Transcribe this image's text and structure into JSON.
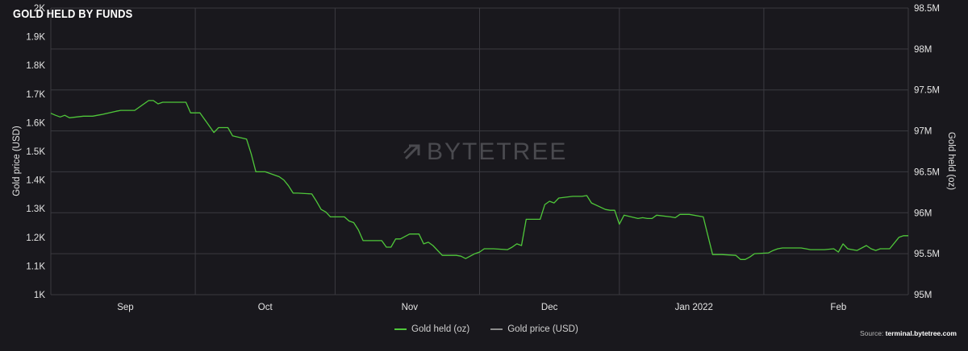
{
  "title": "GOLD HELD BY FUNDS",
  "watermark": "BYTETREE",
  "source": {
    "label": "Source:",
    "value": "terminal.bytetree.com"
  },
  "colors": {
    "background": "#19181d",
    "grid": "#3b3a40",
    "gold_held": "#4fc73a",
    "gold_price": "#8c8c8c",
    "text": "#e4e4e4"
  },
  "chart_data": {
    "type": "line",
    "title": "GOLD HELD BY FUNDS",
    "x_ticks": [
      "Sep",
      "Oct",
      "Nov",
      "Dec",
      "Jan 2022",
      "Feb"
    ],
    "x_range": [
      "2021-08-16",
      "2022-02-16"
    ],
    "y_left": {
      "label": "Gold price (USD)",
      "ticks": [
        "1K",
        "1.1K",
        "1.2K",
        "1.3K",
        "1.4K",
        "1.5K",
        "1.6K",
        "1.7K",
        "1.8K",
        "1.9K",
        "2K"
      ],
      "range": [
        1000,
        2000
      ]
    },
    "y_right": {
      "label": "Gold held (oz)",
      "ticks": [
        "95M",
        "95.5M",
        "96M",
        "96.5M",
        "97M",
        "97.5M",
        "98M",
        "98.5M"
      ],
      "range": [
        95000000,
        98500000
      ]
    },
    "grid": true,
    "legend_position": "bottom-center",
    "series": [
      {
        "name": "Gold held (oz)",
        "axis": "right",
        "points": [
          [
            "2021-08-16",
            97.215
          ],
          [
            "2021-08-17",
            97.19
          ],
          [
            "2021-08-18",
            97.17
          ],
          [
            "2021-08-19",
            97.19
          ],
          [
            "2021-08-20",
            97.16
          ],
          [
            "2021-08-23",
            97.18
          ],
          [
            "2021-08-24",
            97.18
          ],
          [
            "2021-08-25",
            97.18
          ],
          [
            "2021-08-26",
            97.19
          ],
          [
            "2021-08-27",
            97.2
          ],
          [
            "2021-08-30",
            97.24
          ],
          [
            "2021-08-31",
            97.25
          ],
          [
            "2021-09-01",
            97.25
          ],
          [
            "2021-09-02",
            97.25
          ],
          [
            "2021-09-03",
            97.25
          ],
          [
            "2021-09-06",
            97.37
          ],
          [
            "2021-09-07",
            97.37
          ],
          [
            "2021-09-08",
            97.33
          ],
          [
            "2021-09-09",
            97.35
          ],
          [
            "2021-09-10",
            97.35
          ],
          [
            "2021-09-13",
            97.35
          ],
          [
            "2021-09-14",
            97.35
          ],
          [
            "2021-09-15",
            97.22
          ],
          [
            "2021-09-16",
            97.22
          ],
          [
            "2021-09-17",
            97.22
          ],
          [
            "2021-09-20",
            96.98
          ],
          [
            "2021-09-21",
            97.04
          ],
          [
            "2021-09-22",
            97.04
          ],
          [
            "2021-09-23",
            97.04
          ],
          [
            "2021-09-24",
            96.94
          ],
          [
            "2021-09-27",
            96.9
          ],
          [
            "2021-09-28",
            96.72
          ],
          [
            "2021-09-29",
            96.5
          ],
          [
            "2021-09-30",
            96.5
          ],
          [
            "2021-10-01",
            96.5
          ],
          [
            "2021-10-04",
            96.44
          ],
          [
            "2021-10-05",
            96.4
          ],
          [
            "2021-10-06",
            96.33
          ],
          [
            "2021-10-07",
            96.24
          ],
          [
            "2021-10-08",
            96.24
          ],
          [
            "2021-10-11",
            96.23
          ],
          [
            "2021-10-12",
            96.14
          ],
          [
            "2021-10-13",
            96.04
          ],
          [
            "2021-10-14",
            96.01
          ],
          [
            "2021-10-15",
            95.95
          ],
          [
            "2021-10-18",
            95.95
          ],
          [
            "2021-10-19",
            95.9
          ],
          [
            "2021-10-20",
            95.88
          ],
          [
            "2021-10-21",
            95.79
          ],
          [
            "2021-10-22",
            95.66
          ],
          [
            "2021-10-25",
            95.66
          ],
          [
            "2021-10-26",
            95.66
          ],
          [
            "2021-10-27",
            95.58
          ],
          [
            "2021-10-28",
            95.58
          ],
          [
            "2021-10-29",
            95.68
          ],
          [
            "2021-10-30",
            95.68
          ],
          [
            "2021-11-01",
            95.74
          ],
          [
            "2021-11-02",
            95.74
          ],
          [
            "2021-11-03",
            95.74
          ],
          [
            "2021-11-04",
            95.62
          ],
          [
            "2021-11-05",
            95.64
          ],
          [
            "2021-11-06",
            95.6
          ],
          [
            "2021-11-08",
            95.48
          ],
          [
            "2021-11-09",
            95.48
          ],
          [
            "2021-11-10",
            95.48
          ],
          [
            "2021-11-11",
            95.48
          ],
          [
            "2021-11-12",
            95.47
          ],
          [
            "2021-11-13",
            95.44
          ],
          [
            "2021-11-15",
            95.5
          ],
          [
            "2021-11-16",
            95.52
          ],
          [
            "2021-11-17",
            95.56
          ],
          [
            "2021-11-18",
            95.56
          ],
          [
            "2021-11-19",
            95.56
          ],
          [
            "2021-11-22",
            95.55
          ],
          [
            "2021-11-23",
            95.58
          ],
          [
            "2021-11-24",
            95.62
          ],
          [
            "2021-11-25",
            95.6
          ],
          [
            "2021-11-26",
            95.92
          ],
          [
            "2021-11-27",
            95.92
          ],
          [
            "2021-11-29",
            95.92
          ],
          [
            "2021-11-30",
            96.1
          ],
          [
            "2021-12-01",
            96.14
          ],
          [
            "2021-12-02",
            96.12
          ],
          [
            "2021-12-03",
            96.18
          ],
          [
            "2021-12-06",
            96.2
          ],
          [
            "2021-12-07",
            96.2
          ],
          [
            "2021-12-08",
            96.2
          ],
          [
            "2021-12-09",
            96.21
          ],
          [
            "2021-12-10",
            96.12
          ],
          [
            "2021-12-13",
            96.04
          ],
          [
            "2021-12-14",
            96.03
          ],
          [
            "2021-12-15",
            96.03
          ],
          [
            "2021-12-16",
            95.86
          ],
          [
            "2021-12-17",
            95.97
          ],
          [
            "2021-12-20",
            95.93
          ],
          [
            "2021-12-21",
            95.94
          ],
          [
            "2021-12-22",
            95.93
          ],
          [
            "2021-12-23",
            95.93
          ],
          [
            "2021-12-24",
            95.97
          ],
          [
            "2021-12-27",
            95.95
          ],
          [
            "2021-12-28",
            95.94
          ],
          [
            "2021-12-29",
            95.98
          ],
          [
            "2021-12-30",
            95.98
          ],
          [
            "2021-12-31",
            95.98
          ],
          [
            "2022-01-03",
            95.95
          ],
          [
            "2022-01-04",
            95.72
          ],
          [
            "2022-01-05",
            95.49
          ],
          [
            "2022-01-06",
            95.49
          ],
          [
            "2022-01-07",
            95.49
          ],
          [
            "2022-01-10",
            95.48
          ],
          [
            "2022-01-11",
            95.43
          ],
          [
            "2022-01-12",
            95.43
          ],
          [
            "2022-01-13",
            95.46
          ],
          [
            "2022-01-14",
            95.5
          ],
          [
            "2022-01-17",
            95.51
          ],
          [
            "2022-01-18",
            95.54
          ],
          [
            "2022-01-19",
            95.56
          ],
          [
            "2022-01-20",
            95.57
          ],
          [
            "2022-01-21",
            95.57
          ],
          [
            "2022-01-24",
            95.57
          ],
          [
            "2022-01-25",
            95.56
          ],
          [
            "2022-01-26",
            95.55
          ],
          [
            "2022-01-27",
            95.55
          ],
          [
            "2022-01-28",
            95.55
          ],
          [
            "2022-01-29",
            95.55
          ],
          [
            "2022-01-31",
            95.56
          ],
          [
            "2022-02-01",
            95.52
          ],
          [
            "2022-02-02",
            95.62
          ],
          [
            "2022-02-03",
            95.56
          ],
          [
            "2022-02-04",
            95.55
          ],
          [
            "2022-02-05",
            95.54
          ],
          [
            "2022-02-07",
            95.6
          ],
          [
            "2022-02-08",
            95.56
          ],
          [
            "2022-02-09",
            95.54
          ],
          [
            "2022-02-10",
            95.56
          ],
          [
            "2022-02-11",
            95.56
          ],
          [
            "2022-02-12",
            95.56
          ],
          [
            "2022-02-14",
            95.7
          ],
          [
            "2022-02-15",
            95.72
          ],
          [
            "2022-02-16",
            95.72
          ]
        ]
      },
      {
        "name": "Gold price (USD)",
        "axis": "left",
        "points": []
      }
    ]
  }
}
